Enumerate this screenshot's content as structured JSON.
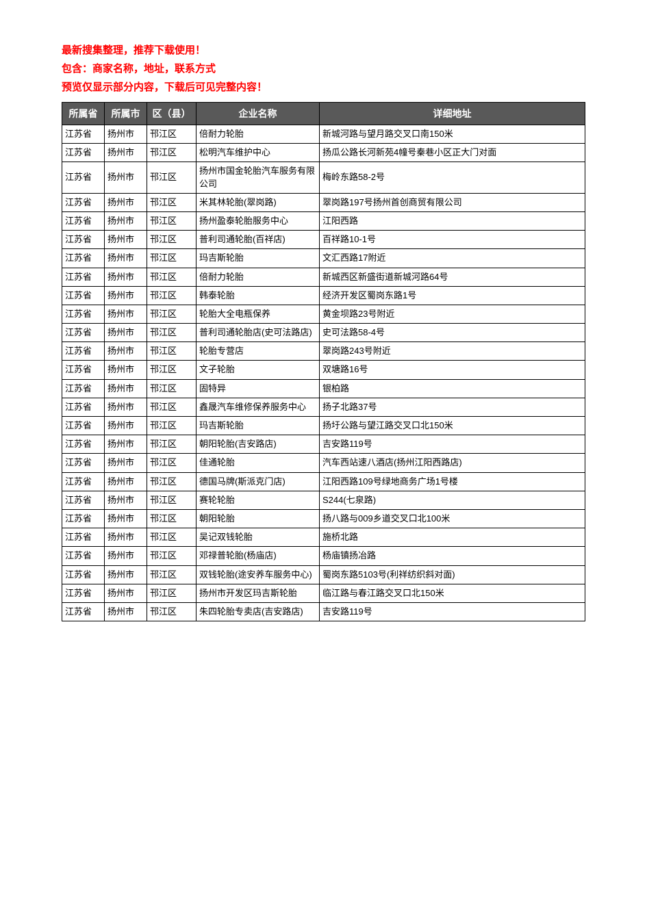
{
  "intro": {
    "line1": "最新搜集整理，推荐下载使用！",
    "line2": "包含：商家名称，地址，联系方式",
    "line3": "预览仅显示部分内容，下载后可见完整内容！"
  },
  "table": {
    "headers": {
      "province": "所属省",
      "city": "所属市",
      "district": "区（县）",
      "company": "企业名称",
      "address": "详细地址"
    },
    "rows": [
      {
        "province": "江苏省",
        "city": "扬州市",
        "district": "邗江区",
        "company": "倍耐力轮胎",
        "address": "新城河路与望月路交叉口南150米"
      },
      {
        "province": "江苏省",
        "city": "扬州市",
        "district": "邗江区",
        "company": "松明汽车维护中心",
        "address": "扬瓜公路长河新苑4幢号秦巷小区正大门对面"
      },
      {
        "province": "江苏省",
        "city": "扬州市",
        "district": "邗江区",
        "company": "扬州市国金轮胎汽车服务有限公司",
        "address": "梅岭东路58-2号"
      },
      {
        "province": "江苏省",
        "city": "扬州市",
        "district": "邗江区",
        "company": "米其林轮胎(翠岗路)",
        "address": "翠岗路197号扬州首创商贸有限公司"
      },
      {
        "province": "江苏省",
        "city": "扬州市",
        "district": "邗江区",
        "company": "扬州盈泰轮胎服务中心",
        "address": "江阳西路"
      },
      {
        "province": "江苏省",
        "city": "扬州市",
        "district": "邗江区",
        "company": "普利司通轮胎(百祥店)",
        "address": "百祥路10-1号"
      },
      {
        "province": "江苏省",
        "city": "扬州市",
        "district": "邗江区",
        "company": "玛吉斯轮胎",
        "address": "文汇西路17附近"
      },
      {
        "province": "江苏省",
        "city": "扬州市",
        "district": "邗江区",
        "company": "倍耐力轮胎",
        "address": "新城西区新盛街道新城河路64号"
      },
      {
        "province": "江苏省",
        "city": "扬州市",
        "district": "邗江区",
        "company": "韩泰轮胎",
        "address": "经济开发区蜀岗东路1号"
      },
      {
        "province": "江苏省",
        "city": "扬州市",
        "district": "邗江区",
        "company": "轮胎大全电瓶保养",
        "address": "黄金坝路23号附近"
      },
      {
        "province": "江苏省",
        "city": "扬州市",
        "district": "邗江区",
        "company": "普利司通轮胎店(史可法路店)",
        "address": "史可法路58-4号"
      },
      {
        "province": "江苏省",
        "city": "扬州市",
        "district": "邗江区",
        "company": "轮胎专营店",
        "address": "翠岗路243号附近"
      },
      {
        "province": "江苏省",
        "city": "扬州市",
        "district": "邗江区",
        "company": "文子轮胎",
        "address": "双塘路16号"
      },
      {
        "province": "江苏省",
        "city": "扬州市",
        "district": "邗江区",
        "company": "固特异",
        "address": "银柏路"
      },
      {
        "province": "江苏省",
        "city": "扬州市",
        "district": "邗江区",
        "company": "鑫晟汽车维修保养服务中心",
        "address": "扬子北路37号"
      },
      {
        "province": "江苏省",
        "city": "扬州市",
        "district": "邗江区",
        "company": "玛吉斯轮胎",
        "address": "扬圩公路与望江路交叉口北150米"
      },
      {
        "province": "江苏省",
        "city": "扬州市",
        "district": "邗江区",
        "company": "朝阳轮胎(吉安路店)",
        "address": "吉安路119号"
      },
      {
        "province": "江苏省",
        "city": "扬州市",
        "district": "邗江区",
        "company": "佳通轮胎",
        "address": "汽车西站速八酒店(扬州江阳西路店)"
      },
      {
        "province": "江苏省",
        "city": "扬州市",
        "district": "邗江区",
        "company": "德国马牌(斯派克门店)",
        "address": "江阳西路109号绿地商务广场1号楼"
      },
      {
        "province": "江苏省",
        "city": "扬州市",
        "district": "邗江区",
        "company": "赛轮轮胎",
        "address": "S244(七泉路)"
      },
      {
        "province": "江苏省",
        "city": "扬州市",
        "district": "邗江区",
        "company": "朝阳轮胎",
        "address": "扬八路与009乡道交叉口北100米"
      },
      {
        "province": "江苏省",
        "city": "扬州市",
        "district": "邗江区",
        "company": "吴记双钱轮胎",
        "address": "施桥北路"
      },
      {
        "province": "江苏省",
        "city": "扬州市",
        "district": "邗江区",
        "company": "邓禄普轮胎(杨庙店)",
        "address": "杨庙镇扬冶路"
      },
      {
        "province": "江苏省",
        "city": "扬州市",
        "district": "邗江区",
        "company": "双钱轮胎(途安养车服务中心)",
        "address": "蜀岗东路5103号(利祥纺织斜对面)"
      },
      {
        "province": "江苏省",
        "city": "扬州市",
        "district": "邗江区",
        "company": "扬州市开发区玛吉斯轮胎",
        "address": "临江路与春江路交叉口北150米"
      },
      {
        "province": "江苏省",
        "city": "扬州市",
        "district": "邗江区",
        "company": "朱四轮胎专卖店(吉安路店)",
        "address": "吉安路119号"
      }
    ]
  },
  "styles": {
    "header_bg": "#595959",
    "header_fg": "#ffffff",
    "border_color": "#000000",
    "intro_color": "#ff0000",
    "body_bg": "#ffffff",
    "font_size_intro": 15,
    "font_size_header": 14,
    "font_size_cell": 13
  }
}
